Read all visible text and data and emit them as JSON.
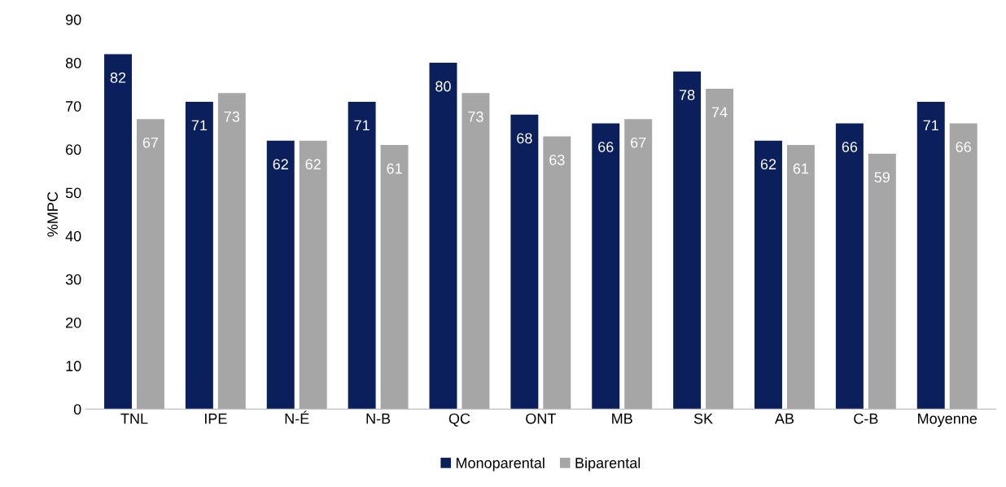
{
  "chart_data": {
    "type": "bar",
    "ylabel": "%MPC",
    "categories": [
      "TNL",
      "IPE",
      "N-É",
      "N-B",
      "QC",
      "ONT",
      "MB",
      "SK",
      "AB",
      "C-B",
      "Moyenne"
    ],
    "series": [
      {
        "name": "Monoparental",
        "color": "#0b1f5c",
        "values": [
          82,
          71,
          62,
          71,
          80,
          68,
          66,
          78,
          62,
          66,
          71
        ]
      },
      {
        "name": "Biparental",
        "color": "#a6a6a6",
        "values": [
          67,
          73,
          62,
          61,
          73,
          63,
          67,
          74,
          61,
          59,
          66
        ]
      }
    ],
    "ylim": [
      0,
      90
    ],
    "yticks": [
      0,
      10,
      20,
      30,
      40,
      50,
      60,
      70,
      80,
      90
    ],
    "data_labels": true,
    "grid": false,
    "legend": "bottom"
  }
}
